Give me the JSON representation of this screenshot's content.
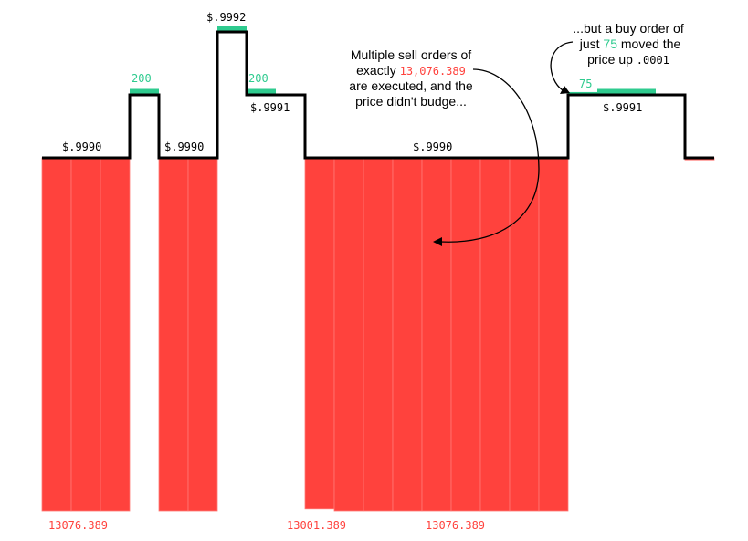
{
  "chart_data": {
    "type": "bar",
    "title": "",
    "xlabel": "",
    "ylabel": "",
    "colors": {
      "sell": "#ff423d",
      "buy": "#2fcb8f",
      "price_line": "#000000",
      "annotation_accent_sell": "#ff423d",
      "annotation_accent_buy": "#2fcb8f"
    },
    "sell_orders": [
      {
        "values": [
          13076.389,
          13076.389,
          13076.389
        ],
        "label": "13076.389"
      },
      {
        "values": [
          13076.389,
          13076.389
        ],
        "label": ""
      },
      {
        "values": [
          13001.389,
          13076.389,
          13076.389,
          13076.389,
          13076.389,
          13076.389,
          13076.389,
          13076.389,
          13076.389
        ],
        "labels": [
          "13001.389",
          "13076.389"
        ]
      },
      {
        "values": [
          75
        ],
        "label": ""
      }
    ],
    "buy_orders": [
      {
        "values": [
          200
        ],
        "label": "200"
      },
      {
        "values": [
          200
        ],
        "label": ""
      },
      {
        "values": [
          200
        ],
        "label": "200"
      },
      {
        "values": [
          75,
          200,
          200
        ],
        "label": "75"
      }
    ],
    "price_labels": [
      "$.9990",
      "$.9990",
      "$.9992",
      "$.9991",
      "$.9990",
      "$.9991"
    ],
    "price_path": [
      {
        "price": 0.999,
        "units": 3
      },
      {
        "price": 0.9991,
        "units": 1
      },
      {
        "price": 0.999,
        "units": 2
      },
      {
        "price": 0.9992,
        "units": 1
      },
      {
        "price": 0.9991,
        "units": 2
      },
      {
        "price": 0.999,
        "units": 9
      },
      {
        "price": 0.9991,
        "units": 4
      },
      {
        "price": 0.999,
        "units": 1
      }
    ],
    "annotations": {
      "sell_note": {
        "line1": "Multiple sell orders of",
        "line2_prefix": "exactly ",
        "line2_value": "13,076.389",
        "line3": "are executed, and the",
        "line4": "price didn't budge..."
      },
      "buy_note": {
        "line1": "...but a buy order of",
        "line2_prefix": "just ",
        "line2_value": "75",
        "line2_suffix": " moved the",
        "line3_prefix": "price up ",
        "line3_value": ".0001"
      }
    }
  }
}
